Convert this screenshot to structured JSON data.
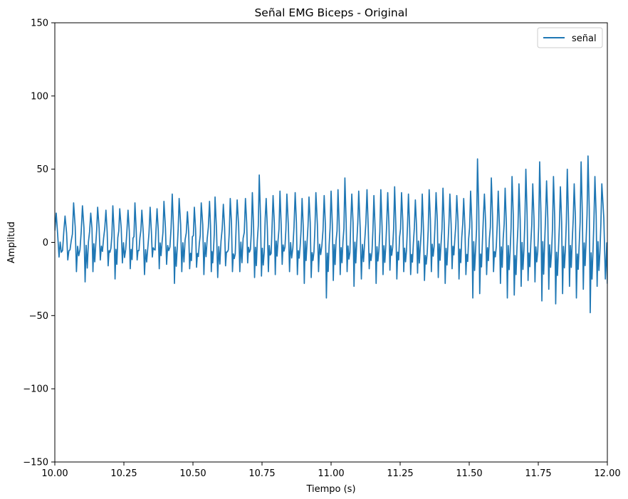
{
  "chart_data": {
    "type": "line",
    "title": "Señal EMG Biceps - Original",
    "xlabel": "Tiempo (s)",
    "ylabel": "Amplitud",
    "xlim": [
      10.0,
      12.0
    ],
    "ylim": [
      -150,
      150
    ],
    "x_ticks": [
      10.0,
      10.25,
      10.5,
      10.75,
      11.0,
      11.25,
      11.5,
      11.75,
      12.0
    ],
    "x_tick_labels": [
      "10.00",
      "10.25",
      "10.50",
      "10.75",
      "11.00",
      "11.25",
      "11.50",
      "11.75",
      "12.00"
    ],
    "y_ticks": [
      -150,
      -100,
      -50,
      0,
      50,
      100,
      150
    ],
    "y_tick_labels": [
      "−150",
      "−100",
      "−50",
      "0",
      "50",
      "100",
      "150"
    ],
    "grid": false,
    "legend_position": "top-right",
    "series": [
      {
        "name": "señal",
        "color": "#1f77b4",
        "peak_times": [
          10.005,
          10.037,
          10.068,
          10.1,
          10.13,
          10.155,
          10.185,
          10.21,
          10.235,
          10.265,
          10.29,
          10.315,
          10.345,
          10.37,
          10.395,
          10.425,
          10.45,
          10.48,
          10.505,
          10.53,
          10.56,
          10.58,
          10.61,
          10.635,
          10.66,
          10.69,
          10.715,
          10.74,
          10.765,
          10.79,
          10.815,
          10.84,
          10.87,
          10.895,
          10.92,
          10.945,
          10.975,
          11.0,
          11.025,
          11.05,
          11.075,
          11.1,
          11.13,
          11.155,
          11.18,
          11.205,
          11.23,
          11.255,
          11.28,
          11.305,
          11.33,
          11.355,
          11.38,
          11.405,
          11.43,
          11.455,
          11.48,
          11.505,
          11.53,
          11.555,
          11.58,
          11.605,
          11.63,
          11.655,
          11.68,
          11.705,
          11.73,
          11.755,
          11.78,
          11.805,
          11.83,
          11.855,
          11.88,
          11.905,
          11.93,
          11.955,
          11.98
        ],
        "peak_values": [
          20,
          18,
          27,
          25,
          20,
          24,
          22,
          25,
          23,
          22,
          27,
          22,
          24,
          23,
          28,
          33,
          30,
          21,
          24,
          27,
          28,
          31,
          26,
          30,
          29,
          30,
          34,
          46,
          30,
          32,
          35,
          33,
          34,
          30,
          31,
          34,
          32,
          35,
          36,
          44,
          33,
          35,
          36,
          32,
          36,
          34,
          38,
          34,
          33,
          29,
          33,
          36,
          34,
          37,
          33,
          32,
          30,
          35,
          57,
          33,
          44,
          35,
          37,
          45,
          40,
          50,
          40,
          55,
          42,
          45,
          38,
          50,
          40,
          55,
          59,
          45,
          40
        ],
        "trough_values": [
          -10,
          -12,
          -20,
          -27,
          -20,
          -12,
          -16,
          -25,
          -14,
          -18,
          -12,
          -22,
          -10,
          -18,
          -15,
          -28,
          -20,
          -18,
          -17,
          -22,
          -20,
          -24,
          -16,
          -20,
          -20,
          -14,
          -24,
          -23,
          -20,
          -22,
          -15,
          -20,
          -22,
          -28,
          -24,
          -20,
          -38,
          -26,
          -22,
          -20,
          -30,
          -25,
          -18,
          -28,
          -22,
          -19,
          -25,
          -20,
          -22,
          -21,
          -26,
          -20,
          -24,
          -28,
          -18,
          -25,
          -22,
          -38,
          -35,
          -22,
          -20,
          -28,
          -38,
          -36,
          -30,
          -26,
          -27,
          -40,
          -32,
          -42,
          -35,
          -30,
          -38,
          -32,
          -48,
          -30,
          -25
        ]
      }
    ]
  }
}
